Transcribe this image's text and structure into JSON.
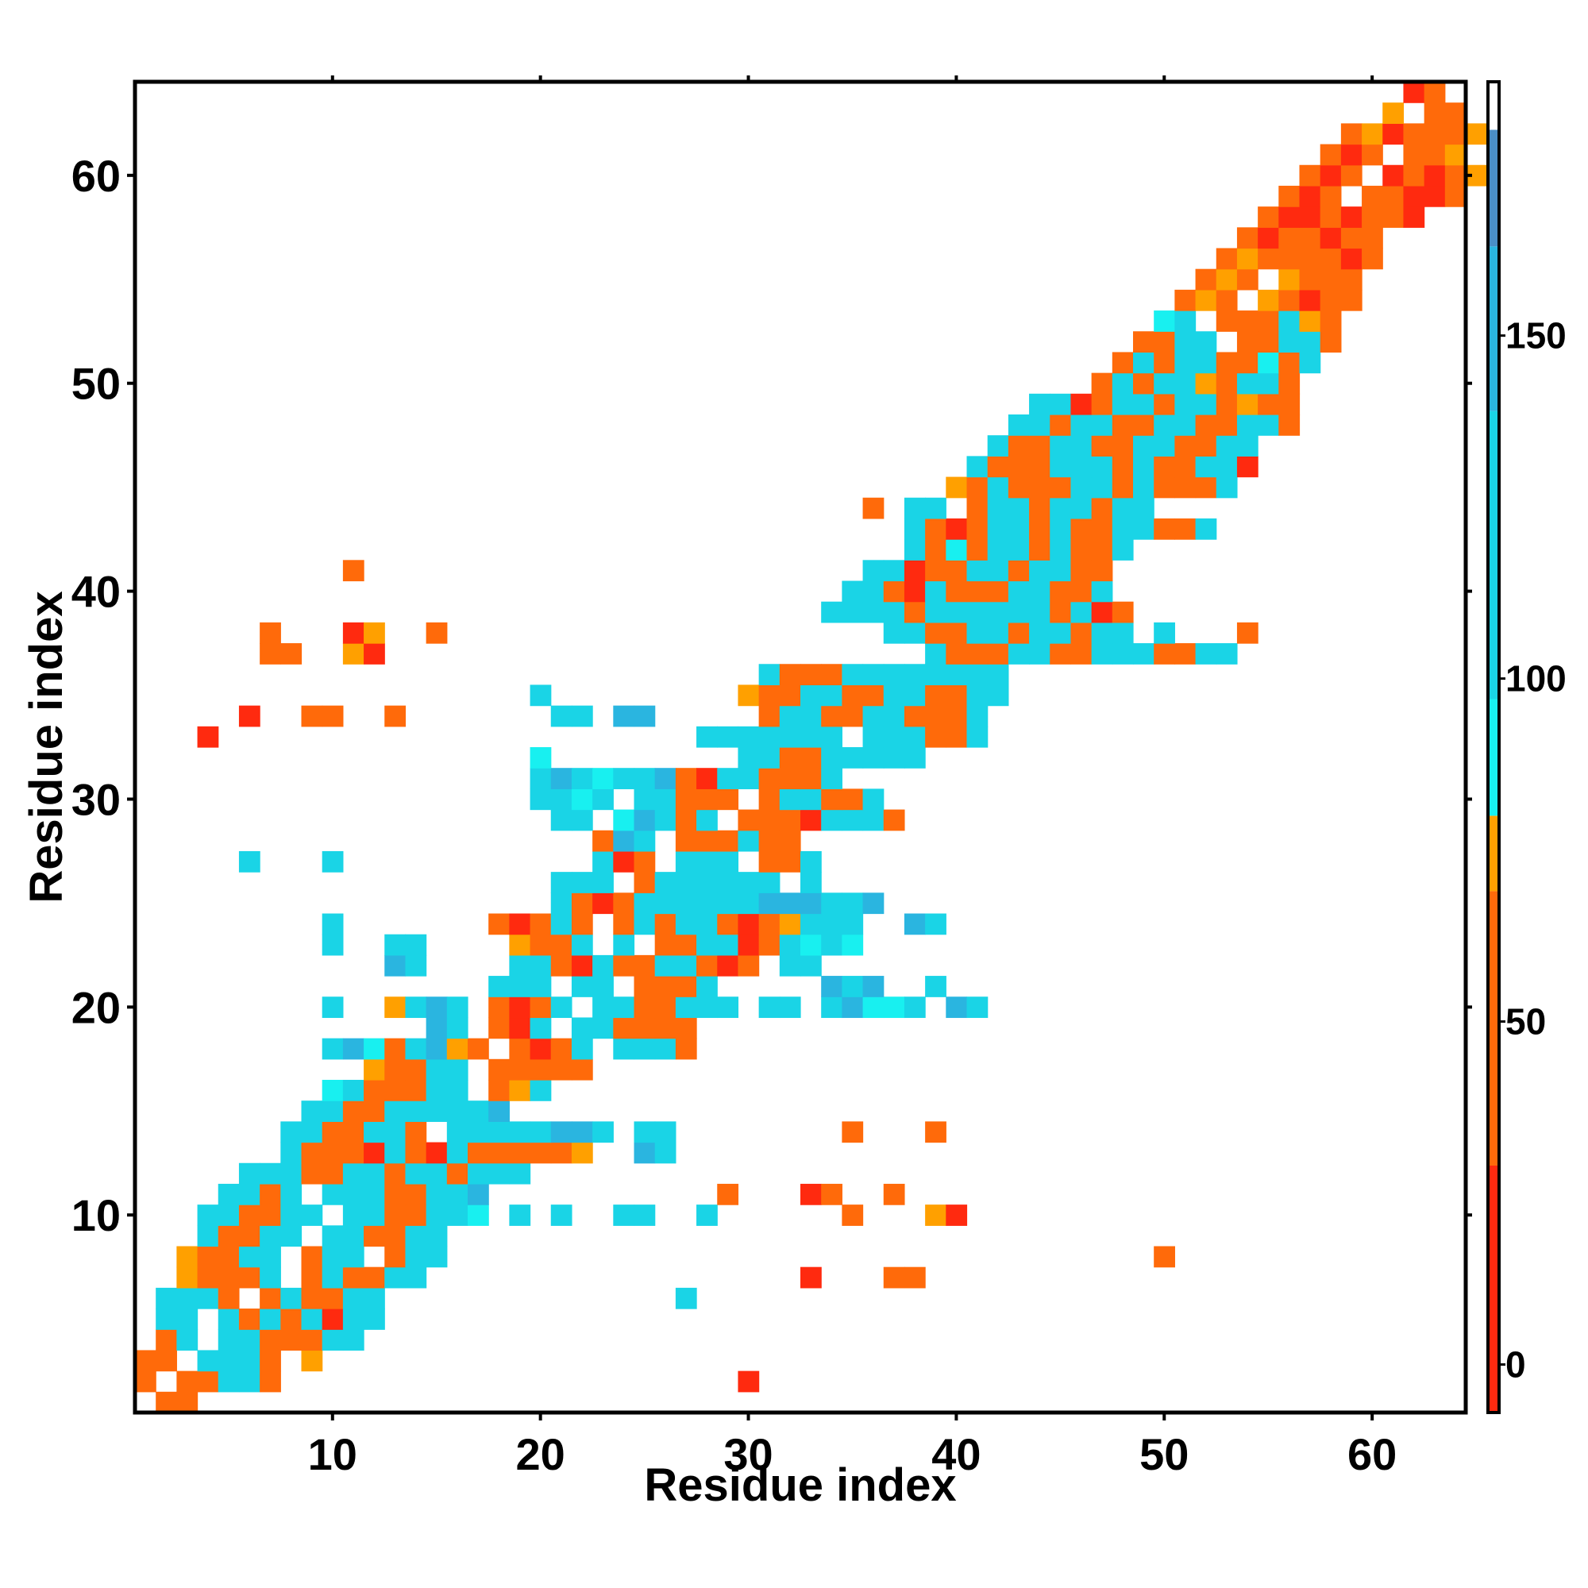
{
  "chart_data": {
    "type": "heatmap",
    "xlabel": "Residue index",
    "ylabel": "Residue index",
    "xlim": [
      0.5,
      64.5
    ],
    "ylim": [
      0.5,
      64.5
    ],
    "xticks": [
      10,
      20,
      30,
      40,
      50,
      60
    ],
    "yticks": [
      10,
      20,
      30,
      40,
      50,
      60
    ],
    "colorbar": {
      "range": [
        -7,
        180
      ],
      "ticks": [
        0,
        50,
        100,
        150
      ],
      "bands": [
        {
          "from": -7,
          "to": 29,
          "color": "#ff2a0f"
        },
        {
          "from": 29,
          "to": 69,
          "color": "#ff6a0a"
        },
        {
          "from": 69,
          "to": 80,
          "color": "#ffa000"
        },
        {
          "from": 80,
          "to": 97,
          "color": "#18f0f0"
        },
        {
          "from": 97,
          "to": 139,
          "color": "#1ad4e6"
        },
        {
          "from": 139,
          "to": 163,
          "color": "#2ab5e0"
        },
        {
          "from": 163,
          "to": 180,
          "color": "#4a8ec6"
        },
        {
          "from": 180,
          "to": 187,
          "color": "#ffffff"
        }
      ]
    },
    "value_legend": {
      "r": 15,
      "o": 50,
      "a": 75,
      "c": 90,
      "t": 120,
      "b": 150,
      "s": 170
    },
    "rows": [
      {
        "y": 1,
        "x0": 2,
        "cells": "oo"
      },
      {
        "y": 2,
        "x0": 1,
        "cells": "o.ootto......................r"
      },
      {
        "y": 3,
        "x0": 1,
        "cells": "oo.ttto.a"
      },
      {
        "y": 4,
        "x0": 2,
        "cells": "ot.ttooott"
      },
      {
        "y": 5,
        "x0": 2,
        "cells": "tt.tototrtt"
      },
      {
        "y": 6,
        "x0": 2,
        "cells": "ttto.otoott..............t"
      },
      {
        "y": 7,
        "x0": 3,
        "cells": "aooot.otoott..................r...oo"
      },
      {
        "y": 8,
        "x0": 3,
        "cells": "aoott.ott.ott..................................o"
      },
      {
        "y": 9,
        "x0": 4,
        "cells": "toott.ttoott"
      },
      {
        "y": 10,
        "x0": 4,
        "cells": "ttoott.ttoottc.t.t..tt..t......o...ar"
      },
      {
        "y": 11,
        "x0": 5,
        "cells": "ttot.tttoottb...........o...ro..o"
      },
      {
        "y": 12,
        "x0": 6,
        "cells": "tttoottottottt"
      },
      {
        "y": 13,
        "x0": 8,
        "cells": "tooortortoooooa..bt"
      },
      {
        "y": 14,
        "x0": 8,
        "cells": "ttootto.tttttbbt.tt........o...o"
      },
      {
        "y": 15,
        "x0": 9,
        "cells": "ttootttttb"
      },
      {
        "y": 16,
        "x0": 10,
        "cells": "ctooott.oat"
      },
      {
        "y": 17,
        "x0": 12,
        "cells": "aoott.ooooo"
      },
      {
        "y": 18,
        "x0": 10,
        "cells": "tbcotbao.orot.ttto"
      },
      {
        "y": 19,
        "x0": 15,
        "cells": "bt.ort.ttoooo"
      },
      {
        "y": 20,
        "x0": 10,
        "cells": "t..atbt.orot.ttoottt.tt.tbcct.bt"
      },
      {
        "y": 21,
        "x0": 18,
        "cells": "ttt.tt.ooot.....btb..t"
      },
      {
        "y": 22,
        "x0": 13,
        "cells": "bt....ttortoottoro.tt"
      },
      {
        "y": 23,
        "x0": 10,
        "cells": "t..tt....aoot.t.oottrotctc"
      },
      {
        "y": 24,
        "x0": 10,
        "cells": "t.......oroto.otottoroattt..bt"
      },
      {
        "y": 25,
        "x0": 21,
        "cells": "torottttttbbbttb"
      },
      {
        "y": 26,
        "x0": 21,
        "cells": "ttt.otttttt.t"
      },
      {
        "y": 27,
        "x0": 6,
        "cells": "t...t............tro.ttt.oot"
      },
      {
        "y": 28,
        "x0": 23,
        "cells": "obt.oootoo"
      },
      {
        "y": 29,
        "x0": 21,
        "cells": "tt.cbtot.ooorttto"
      },
      {
        "y": 30,
        "x0": 20,
        "cells": "ttct.ttooo.ottoot"
      },
      {
        "y": 31,
        "x0": 20,
        "cells": "tbtcttborttooot"
      },
      {
        "y": 32,
        "x0": 20,
        "cells": "c.........ttoottttt"
      },
      {
        "y": 33,
        "x0": 1,
        "cells": "...r.......................ttttttt.tttoot"
      },
      {
        "y": 34,
        "x0": 6,
        "cells": "r..oo..o.......tt.bb.....ottoottooot"
      },
      {
        "y": 35,
        "x0": 20,
        "cells": "t.........aoottoottoott"
      },
      {
        "y": 36,
        "x0": 31,
        "cells": "toootttttttt"
      },
      {
        "y": 37,
        "x0": 7,
        "cells": "oo..ar..........................tooottootttoott"
      },
      {
        "y": 38,
        "x0": 7,
        "cells": "o...ra..o.....................ttoottottott.t...o"
      },
      {
        "y": 39,
        "x0": 34,
        "cells": "ttttottttttotro"
      },
      {
        "y": 40,
        "x0": 35,
        "cells": "ttortooottoot"
      },
      {
        "y": 41,
        "x0": 11,
        "cells": "o........................ttroottottoo"
      },
      {
        "y": 42,
        "x0": 38,
        "cells": "tocottotoot"
      },
      {
        "y": 43,
        "x0": 38,
        "cells": "torottotoottoot"
      },
      {
        "y": 44,
        "x0": 36,
        "cells": "o.tt.ottottott"
      },
      {
        "y": 45,
        "x0": 40,
        "cells": "aotooottotooot"
      },
      {
        "y": 46,
        "x0": 41,
        "cells": "toootttotoottr"
      },
      {
        "y": 47,
        "x0": 42,
        "cells": "toottoottoott"
      },
      {
        "y": 48,
        "x0": 43,
        "cells": "ttottoottootto"
      },
      {
        "y": 49,
        "x0": 44,
        "cells": "ttrottottoaoo"
      },
      {
        "y": 50,
        "x0": 47,
        "cells": "otottaotto"
      },
      {
        "y": 51,
        "x0": 48,
        "cells": "otottoocot"
      },
      {
        "y": 52,
        "x0": 49,
        "cells": "oott.ootto"
      },
      {
        "y": 53,
        "x0": 50,
        "cells": "ct.oootao"
      },
      {
        "y": 54,
        "x0": 51,
        "cells": "oao.aoroo"
      },
      {
        "y": 55,
        "x0": 52,
        "cells": "oao.aooo"
      },
      {
        "y": 56,
        "x0": 53,
        "cells": "oaooooro"
      },
      {
        "y": 57,
        "x0": 54,
        "cells": "orooroo"
      },
      {
        "y": 58,
        "x0": 55,
        "cells": "orroroor"
      },
      {
        "y": 59,
        "x0": 56,
        "cells": "oro.oorro"
      },
      {
        "y": 60,
        "x0": 57,
        "cells": "oro.roroa"
      },
      {
        "y": 61,
        "x0": 58,
        "cells": "oro.ooa"
      },
      {
        "y": 62,
        "x0": 59,
        "cells": "oaroooa"
      },
      {
        "y": 63,
        "x0": 61,
        "cells": "a.oo"
      },
      {
        "y": 64,
        "x0": 62,
        "cells": "ro"
      }
    ]
  }
}
